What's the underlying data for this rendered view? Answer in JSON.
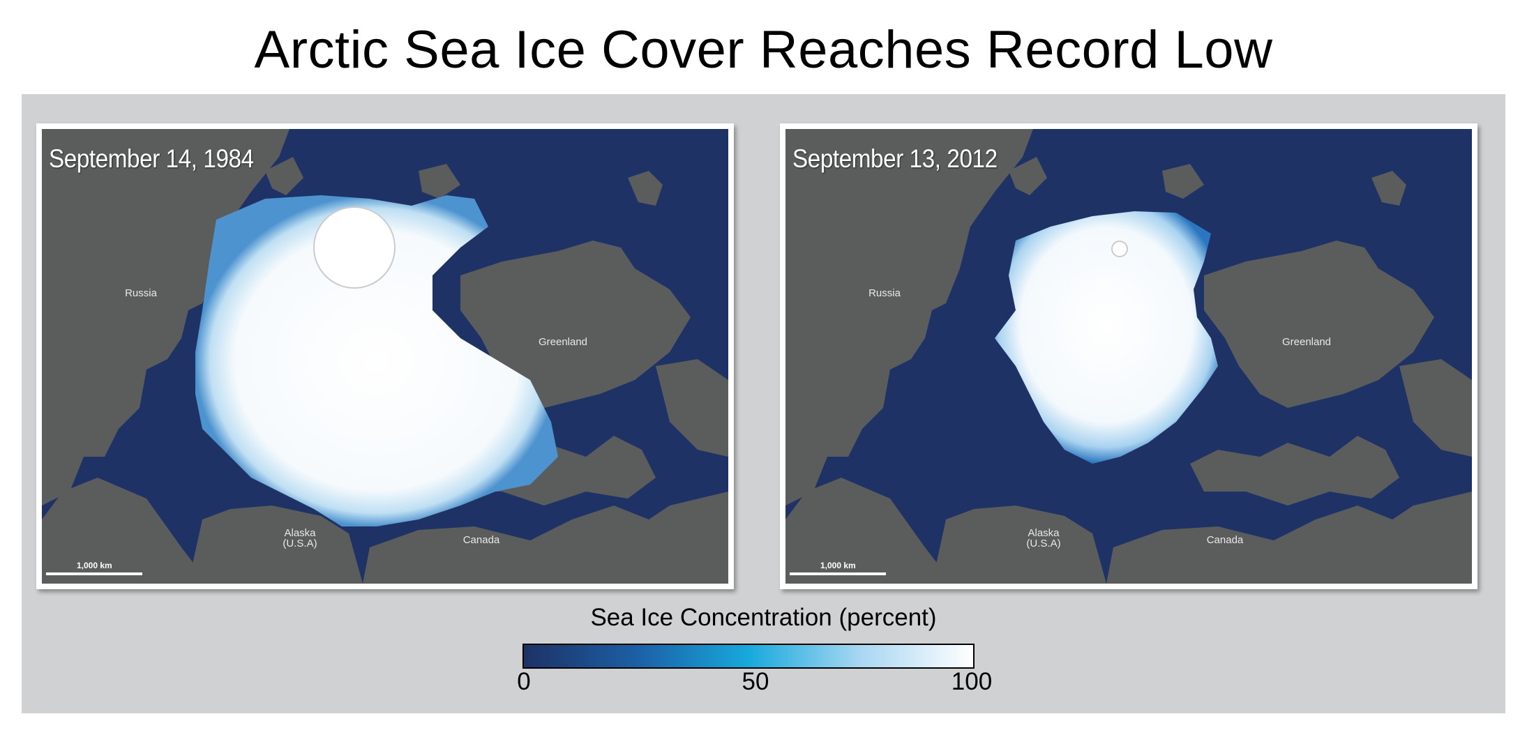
{
  "title": "Arctic Sea Ice Cover Reaches Record Low",
  "maps": [
    {
      "date": "September 14, 1984",
      "labels": {
        "russia": "Russia",
        "greenland": "Greenland",
        "alaska": "Alaska",
        "alaska_sub": "(U.S.A)",
        "canada": "Canada"
      },
      "scale": "1,000 km"
    },
    {
      "date": "September 13, 2012",
      "labels": {
        "russia": "Russia",
        "greenland": "Greenland",
        "alaska": "Alaska",
        "alaska_sub": "(U.S.A)",
        "canada": "Canada"
      },
      "scale": "1,000 km"
    }
  ],
  "legend": {
    "title": "Sea Ice Concentration (percent)",
    "ticks": [
      "0",
      "50",
      "100"
    ],
    "colors": {
      "low": "#1d3266",
      "mid": "#17a9dc",
      "high": "#ffffff"
    }
  },
  "colors": {
    "ocean": "#1f3266",
    "land": "#5b5d5c",
    "panel": "#d0d1d3"
  }
}
